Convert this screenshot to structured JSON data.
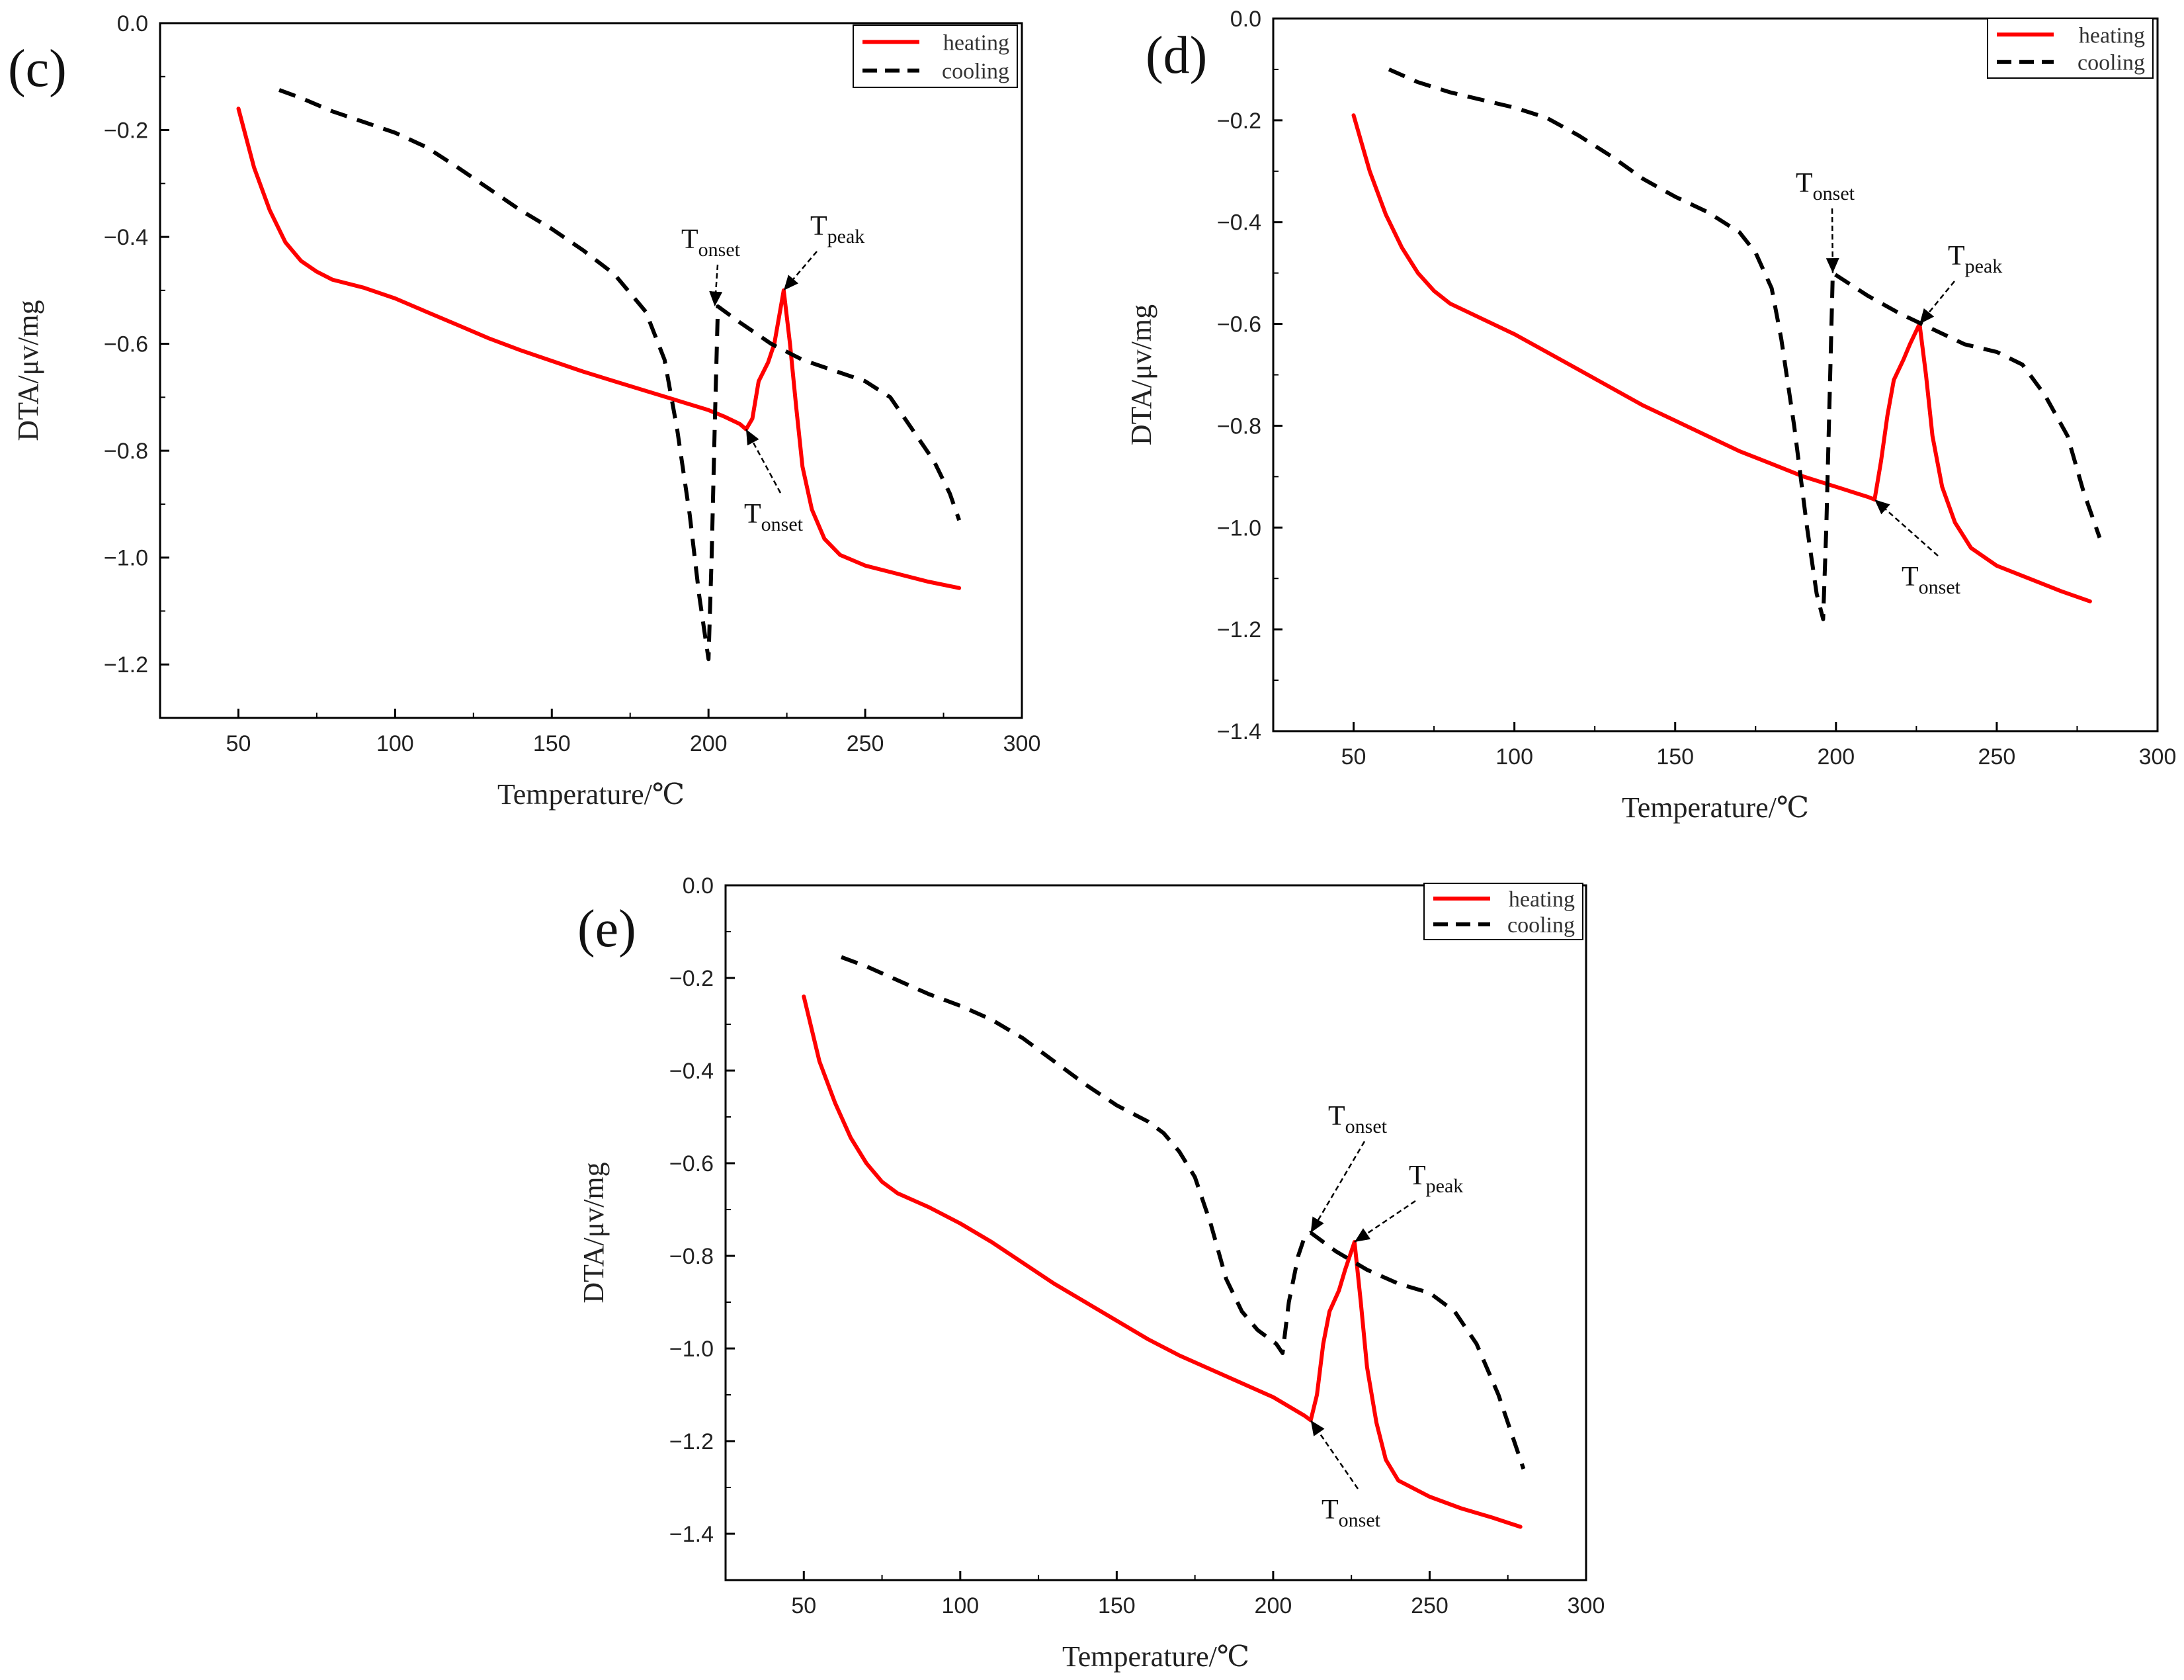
{
  "chart_data": [
    {
      "type": "line",
      "panel_label": "(c)",
      "xlabel": "Temperature/℃",
      "ylabel": "DTA/μv/mg",
      "xlim": [
        25,
        300
      ],
      "ylim": [
        -1.3,
        0.0
      ],
      "x_ticks": [
        "50",
        "100",
        "150",
        "200",
        "250",
        "300"
      ],
      "y_ticks": [
        "0.0",
        "−0.2",
        "−0.4",
        "−0.6",
        "−0.8",
        "−1.0",
        "−1.2"
      ],
      "legend": [
        "heating",
        "cooling"
      ],
      "series": [
        {
          "name": "heating",
          "color": "#ff0000",
          "points": [
            [
              50,
              -0.16
            ],
            [
              55,
              -0.27
            ],
            [
              60,
              -0.35
            ],
            [
              65,
              -0.41
            ],
            [
              70,
              -0.445
            ],
            [
              75,
              -0.465
            ],
            [
              80,
              -0.48
            ],
            [
              90,
              -0.495
            ],
            [
              100,
              -0.515
            ],
            [
              110,
              -0.54
            ],
            [
              120,
              -0.565
            ],
            [
              130,
              -0.59
            ],
            [
              140,
              -0.612
            ],
            [
              150,
              -0.632
            ],
            [
              160,
              -0.652
            ],
            [
              170,
              -0.67
            ],
            [
              180,
              -0.688
            ],
            [
              190,
              -0.706
            ],
            [
              200,
              -0.724
            ],
            [
              205,
              -0.736
            ],
            [
              210,
              -0.75
            ],
            [
              212,
              -0.76
            ],
            [
              214,
              -0.74
            ],
            [
              216,
              -0.67
            ],
            [
              219,
              -0.635
            ],
            [
              221,
              -0.6
            ],
            [
              222.5,
              -0.55
            ],
            [
              224,
              -0.5
            ],
            [
              226,
              -0.6
            ],
            [
              228,
              -0.72
            ],
            [
              230,
              -0.83
            ],
            [
              233,
              -0.91
            ],
            [
              237,
              -0.965
            ],
            [
              242,
              -0.995
            ],
            [
              250,
              -1.015
            ],
            [
              260,
              -1.03
            ],
            [
              270,
              -1.045
            ],
            [
              280,
              -1.057
            ]
          ]
        },
        {
          "name": "cooling",
          "color": "#000000",
          "points": [
            [
              63,
              -0.125
            ],
            [
              70,
              -0.14
            ],
            [
              80,
              -0.165
            ],
            [
              90,
              -0.185
            ],
            [
              100,
              -0.205
            ],
            [
              110,
              -0.232
            ],
            [
              120,
              -0.27
            ],
            [
              130,
              -0.31
            ],
            [
              140,
              -0.35
            ],
            [
              150,
              -0.385
            ],
            [
              160,
              -0.425
            ],
            [
              170,
              -0.47
            ],
            [
              180,
              -0.54
            ],
            [
              186,
              -0.63
            ],
            [
              190,
              -0.76
            ],
            [
              194,
              -0.92
            ],
            [
              197,
              -1.07
            ],
            [
              199,
              -1.15
            ],
            [
              200,
              -1.19
            ],
            [
              201,
              -1.0
            ],
            [
              202,
              -0.75
            ],
            [
              203,
              -0.53
            ],
            [
              210,
              -0.56
            ],
            [
              220,
              -0.6
            ],
            [
              230,
              -0.63
            ],
            [
              240,
              -0.65
            ],
            [
              250,
              -0.67
            ],
            [
              258,
              -0.7
            ],
            [
              265,
              -0.76
            ],
            [
              272,
              -0.82
            ],
            [
              277,
              -0.88
            ],
            [
              280,
              -0.93
            ]
          ]
        }
      ],
      "annotations": [
        {
          "text": "T",
          "sub": "onset",
          "x": 202,
          "y": -0.53
        },
        {
          "text": "T",
          "sub": "peak",
          "x": 224,
          "y": -0.5
        },
        {
          "text": "T",
          "sub": "onset",
          "x": 212,
          "y": -0.76
        }
      ]
    },
    {
      "type": "line",
      "panel_label": "(d)",
      "xlabel": "Temperature/℃",
      "ylabel": "DTA/μv/mg",
      "xlim": [
        25,
        300
      ],
      "ylim": [
        -1.4,
        0.0
      ],
      "x_ticks": [
        "50",
        "100",
        "150",
        "200",
        "250",
        "300"
      ],
      "y_ticks": [
        "0.0",
        "−0.2",
        "−0.4",
        "−0.6",
        "−0.8",
        "−1.0",
        "−1.2",
        "−1.4"
      ],
      "legend": [
        "heating",
        "cooling"
      ],
      "series": [
        {
          "name": "heating",
          "color": "#ff0000",
          "points": [
            [
              50,
              -0.19
            ],
            [
              55,
              -0.3
            ],
            [
              60,
              -0.385
            ],
            [
              65,
              -0.45
            ],
            [
              70,
              -0.5
            ],
            [
              75,
              -0.535
            ],
            [
              80,
              -0.56
            ],
            [
              90,
              -0.59
            ],
            [
              100,
              -0.62
            ],
            [
              110,
              -0.655
            ],
            [
              120,
              -0.69
            ],
            [
              130,
              -0.725
            ],
            [
              140,
              -0.76
            ],
            [
              150,
              -0.79
            ],
            [
              160,
              -0.82
            ],
            [
              170,
              -0.85
            ],
            [
              180,
              -0.875
            ],
            [
              190,
              -0.9
            ],
            [
              200,
              -0.92
            ],
            [
              210,
              -0.94
            ],
            [
              212,
              -0.945
            ],
            [
              214,
              -0.87
            ],
            [
              216,
              -0.78
            ],
            [
              218,
              -0.71
            ],
            [
              221,
              -0.67
            ],
            [
              223,
              -0.64
            ],
            [
              226,
              -0.6
            ],
            [
              228,
              -0.7
            ],
            [
              230,
              -0.82
            ],
            [
              233,
              -0.92
            ],
            [
              237,
              -0.99
            ],
            [
              242,
              -1.04
            ],
            [
              250,
              -1.075
            ],
            [
              260,
              -1.1
            ],
            [
              270,
              -1.125
            ],
            [
              279,
              -1.145
            ]
          ]
        },
        {
          "name": "cooling",
          "color": "#000000",
          "points": [
            [
              61,
              -0.1
            ],
            [
              70,
              -0.125
            ],
            [
              80,
              -0.145
            ],
            [
              90,
              -0.16
            ],
            [
              100,
              -0.175
            ],
            [
              110,
              -0.195
            ],
            [
              120,
              -0.23
            ],
            [
              130,
              -0.27
            ],
            [
              140,
              -0.315
            ],
            [
              150,
              -0.35
            ],
            [
              160,
              -0.38
            ],
            [
              170,
              -0.42
            ],
            [
              175,
              -0.46
            ],
            [
              180,
              -0.53
            ],
            [
              183,
              -0.63
            ],
            [
              187,
              -0.8
            ],
            [
              191,
              -1.0
            ],
            [
              194,
              -1.13
            ],
            [
              196,
              -1.18
            ],
            [
              197,
              -1.0
            ],
            [
              198,
              -0.75
            ],
            [
              199,
              -0.5
            ],
            [
              210,
              -0.545
            ],
            [
              220,
              -0.58
            ],
            [
              230,
              -0.61
            ],
            [
              240,
              -0.64
            ],
            [
              250,
              -0.655
            ],
            [
              258,
              -0.68
            ],
            [
              265,
              -0.74
            ],
            [
              272,
              -0.82
            ],
            [
              277,
              -0.93
            ],
            [
              282,
              -1.02
            ]
          ]
        }
      ],
      "annotations": [
        {
          "text": "T",
          "sub": "onset",
          "x": 199,
          "y": -0.5
        },
        {
          "text": "T",
          "sub": "peak",
          "x": 226,
          "y": -0.6
        },
        {
          "text": "T",
          "sub": "onset",
          "x": 212,
          "y": -0.945
        }
      ]
    },
    {
      "type": "line",
      "panel_label": "(e)",
      "xlabel": "Temperature/℃",
      "ylabel": "DTA/μv/mg",
      "xlim": [
        25,
        300
      ],
      "ylim": [
        -1.5,
        0.0
      ],
      "x_ticks": [
        "50",
        "100",
        "150",
        "200",
        "250",
        "300"
      ],
      "y_ticks": [
        "0.0",
        "−0.2",
        "−0.4",
        "−0.6",
        "−0.8",
        "−1.0",
        "−1.2",
        "−1.4"
      ],
      "legend": [
        "heating",
        "cooling"
      ],
      "series": [
        {
          "name": "heating",
          "color": "#ff0000",
          "points": [
            [
              50,
              -0.24
            ],
            [
              55,
              -0.38
            ],
            [
              60,
              -0.47
            ],
            [
              65,
              -0.545
            ],
            [
              70,
              -0.6
            ],
            [
              75,
              -0.64
            ],
            [
              80,
              -0.665
            ],
            [
              90,
              -0.695
            ],
            [
              100,
              -0.73
            ],
            [
              110,
              -0.77
            ],
            [
              120,
              -0.815
            ],
            [
              130,
              -0.86
            ],
            [
              140,
              -0.9
            ],
            [
              150,
              -0.94
            ],
            [
              160,
              -0.98
            ],
            [
              170,
              -1.015
            ],
            [
              180,
              -1.045
            ],
            [
              190,
              -1.075
            ],
            [
              200,
              -1.105
            ],
            [
              210,
              -1.145
            ],
            [
              212,
              -1.155
            ],
            [
              214,
              -1.1
            ],
            [
              216,
              -0.99
            ],
            [
              218,
              -0.92
            ],
            [
              221,
              -0.875
            ],
            [
              223,
              -0.83
            ],
            [
              226,
              -0.77
            ],
            [
              228,
              -0.9
            ],
            [
              230,
              -1.04
            ],
            [
              233,
              -1.16
            ],
            [
              236,
              -1.24
            ],
            [
              240,
              -1.285
            ],
            [
              250,
              -1.32
            ],
            [
              260,
              -1.345
            ],
            [
              270,
              -1.365
            ],
            [
              279,
              -1.385
            ]
          ]
        },
        {
          "name": "cooling",
          "color": "#000000",
          "points": [
            [
              62,
              -0.155
            ],
            [
              70,
              -0.175
            ],
            [
              80,
              -0.205
            ],
            [
              90,
              -0.235
            ],
            [
              100,
              -0.26
            ],
            [
              110,
              -0.29
            ],
            [
              120,
              -0.33
            ],
            [
              130,
              -0.38
            ],
            [
              140,
              -0.43
            ],
            [
              150,
              -0.475
            ],
            [
              160,
              -0.51
            ],
            [
              165,
              -0.535
            ],
            [
              170,
              -0.575
            ],
            [
              175,
              -0.63
            ],
            [
              180,
              -0.73
            ],
            [
              185,
              -0.85
            ],
            [
              190,
              -0.92
            ],
            [
              195,
              -0.96
            ],
            [
              199,
              -0.98
            ],
            [
              201,
              -0.99
            ],
            [
              203,
              -1.01
            ],
            [
              205,
              -0.9
            ],
            [
              208,
              -0.8
            ],
            [
              210,
              -0.76
            ],
            [
              212,
              -0.75
            ],
            [
              220,
              -0.79
            ],
            [
              230,
              -0.83
            ],
            [
              240,
              -0.86
            ],
            [
              250,
              -0.88
            ],
            [
              258,
              -0.92
            ],
            [
              265,
              -0.99
            ],
            [
              272,
              -1.1
            ],
            [
              277,
              -1.2
            ],
            [
              280,
              -1.26
            ]
          ]
        }
      ],
      "annotations": [
        {
          "text": "T",
          "sub": "onset",
          "x": 212,
          "y": -0.75
        },
        {
          "text": "T",
          "sub": "peak",
          "x": 226,
          "y": -0.77
        },
        {
          "text": "T",
          "sub": "onset",
          "x": 212,
          "y": -1.155
        }
      ]
    }
  ]
}
